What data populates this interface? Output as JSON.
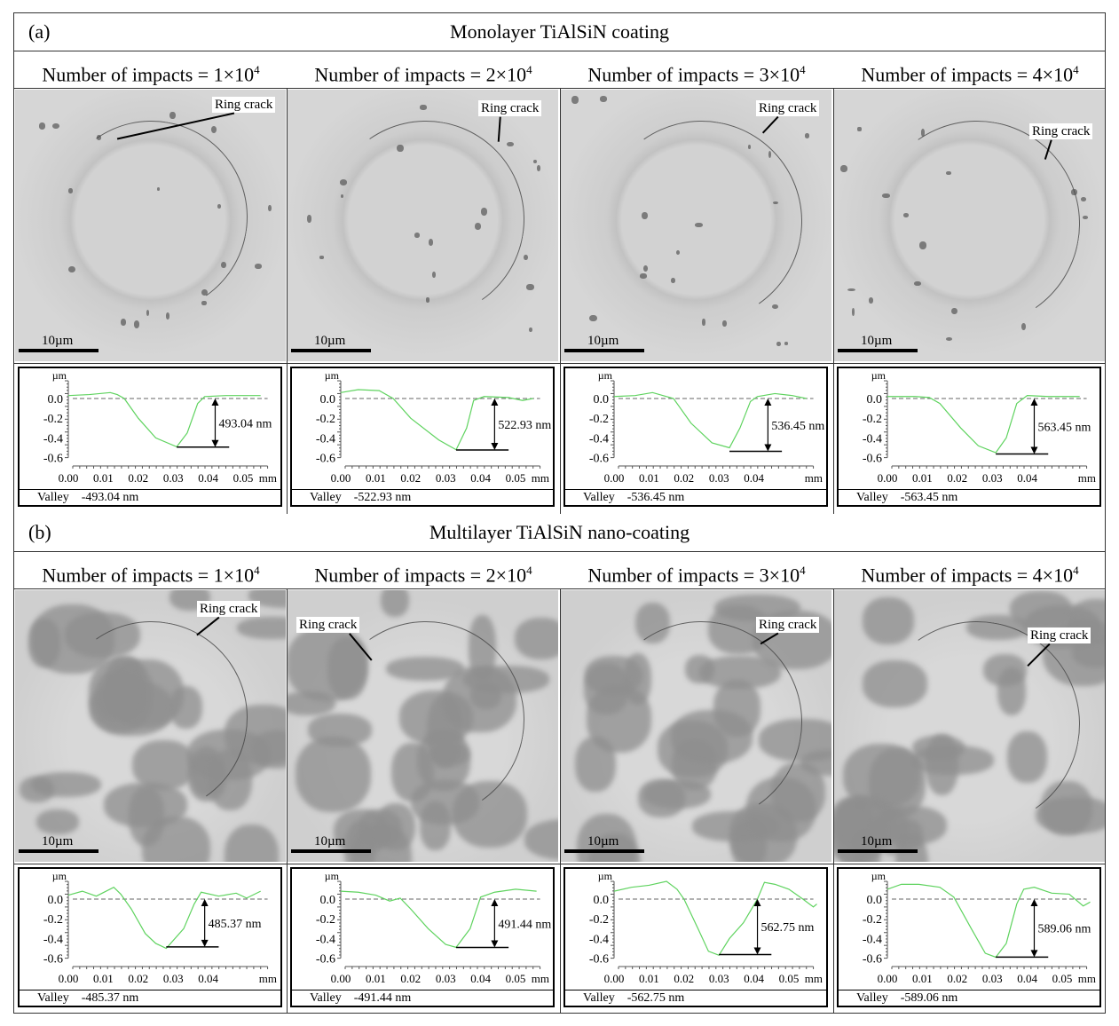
{
  "sections": [
    {
      "label": "(a)",
      "title": "Monolayer TiAlSiN coating",
      "type": "mono",
      "panels": [
        {
          "header": "Number of impacts = 1×10",
          "exp": "4",
          "crack_label": "Ring crack",
          "scale": "10µm",
          "valley_label": "Valley",
          "valley_value": "-493.04 nm",
          "depth_label": "493.04 nm"
        },
        {
          "header": "Number of impacts = 2×10",
          "exp": "4",
          "crack_label": "Ring crack",
          "scale": "10µm",
          "valley_label": "Valley",
          "valley_value": "-522.93 nm",
          "depth_label": "522.93 nm"
        },
        {
          "header": "Number of impacts = 3×10",
          "exp": "4",
          "crack_label": "Ring crack",
          "scale": "10µm",
          "valley_label": "Valley",
          "valley_value": "-536.45 nm",
          "depth_label": "536.45 nm"
        },
        {
          "header": "Number of impacts = 4×10",
          "exp": "4",
          "crack_label": "Ring crack",
          "scale": "10µm",
          "valley_label": "Valley",
          "valley_value": "-563.45 nm",
          "depth_label": "563.45 nm"
        }
      ]
    },
    {
      "label": "(b)",
      "title": "Multilayer TiAlSiN nano-coating",
      "type": "multi",
      "panels": [
        {
          "header": "Number of impacts = 1×10",
          "exp": "4",
          "crack_label": "Ring crack",
          "scale": "10µm",
          "valley_label": "Valley",
          "valley_value": "-485.37 nm",
          "depth_label": "485.37 nm"
        },
        {
          "header": "Number of impacts = 2×10",
          "exp": "4",
          "crack_label": "Ring crack",
          "scale": "10µm",
          "valley_label": "Valley",
          "valley_value": "-491.44 nm",
          "depth_label": "491.44 nm"
        },
        {
          "header": "Number of impacts = 3×10",
          "exp": "4",
          "crack_label": "Ring crack",
          "scale": "10µm",
          "valley_label": "Valley",
          "valley_value": "-562.75 nm",
          "depth_label": "562.75 nm"
        },
        {
          "header": "Number of impacts = 4×10",
          "exp": "4",
          "crack_label": "Ring crack",
          "scale": "10µm",
          "valley_label": "Valley",
          "valley_value": "-589.06 nm",
          "depth_label": "589.06 nm"
        }
      ]
    }
  ],
  "chart_data": [
    {
      "type": "line",
      "ylabel": "µm",
      "xlabel": "mm",
      "yticks": [
        "0.0",
        "-0.2",
        "-0.4",
        "-0.6"
      ],
      "xticks": [
        "0.00",
        "0.01",
        "0.02",
        "0.03",
        "0.04",
        "0.05"
      ],
      "ylim": [
        -0.6,
        0.18
      ],
      "xlim": [
        0,
        0.057
      ],
      "line_color": "#5fd35f",
      "depth_nm": 493.04,
      "valley_x": 0.031,
      "points": [
        [
          0,
          0.03
        ],
        [
          0.006,
          0.04
        ],
        [
          0.012,
          0.06
        ],
        [
          0.014,
          0.04
        ],
        [
          0.016,
          0
        ],
        [
          0.02,
          -0.2
        ],
        [
          0.025,
          -0.4
        ],
        [
          0.031,
          -0.49
        ],
        [
          0.034,
          -0.35
        ],
        [
          0.037,
          -0.05
        ],
        [
          0.039,
          0.02
        ],
        [
          0.045,
          0.03
        ],
        [
          0.055,
          0.03
        ]
      ]
    },
    {
      "type": "line",
      "ylabel": "µm",
      "xlabel": "mm",
      "yticks": [
        "0.0",
        "-0.2",
        "-0.4",
        "-0.6"
      ],
      "xticks": [
        "0.00",
        "0.01",
        "0.02",
        "0.03",
        "0.04",
        "0.05"
      ],
      "ylim": [
        -0.6,
        0.18
      ],
      "xlim": [
        0,
        0.057
      ],
      "line_color": "#5fd35f",
      "depth_nm": 522.93,
      "valley_x": 0.033,
      "points": [
        [
          0,
          0.06
        ],
        [
          0.005,
          0.09
        ],
        [
          0.011,
          0.08
        ],
        [
          0.015,
          0
        ],
        [
          0.02,
          -0.2
        ],
        [
          0.028,
          -0.42
        ],
        [
          0.033,
          -0.52
        ],
        [
          0.036,
          -0.3
        ],
        [
          0.038,
          -0.02
        ],
        [
          0.041,
          0.02
        ],
        [
          0.048,
          0.01
        ],
        [
          0.052,
          -0.02
        ],
        [
          0.055,
          0
        ]
      ]
    },
    {
      "type": "line",
      "ylabel": "µm",
      "xlabel": "mm",
      "yticks": [
        "0.0",
        "-0.2",
        "-0.4",
        "-0.6"
      ],
      "xticks": [
        "0.00",
        "0.01",
        "0.02",
        "0.03",
        "0.04"
      ],
      "ylim": [
        -0.6,
        0.18
      ],
      "xlim": [
        0,
        0.057
      ],
      "line_color": "#5fd35f",
      "depth_nm": 536.45,
      "valley_x": 0.033,
      "points": [
        [
          0,
          0.02
        ],
        [
          0.006,
          0.03
        ],
        [
          0.011,
          0.06
        ],
        [
          0.014,
          0.03
        ],
        [
          0.017,
          0
        ],
        [
          0.022,
          -0.25
        ],
        [
          0.028,
          -0.45
        ],
        [
          0.033,
          -0.5
        ],
        [
          0.036,
          -0.3
        ],
        [
          0.039,
          -0.03
        ],
        [
          0.041,
          0.02
        ],
        [
          0.046,
          0.05
        ],
        [
          0.051,
          0.03
        ],
        [
          0.055,
          0
        ]
      ]
    },
    {
      "type": "line",
      "ylabel": "µm",
      "xlabel": "mm",
      "yticks": [
        "0.0",
        "-0.2",
        "-0.4",
        "-0.6"
      ],
      "xticks": [
        "0.00",
        "0.01",
        "0.02",
        "0.03",
        "0.04"
      ],
      "ylim": [
        -0.6,
        0.18
      ],
      "xlim": [
        0,
        0.057
      ],
      "line_color": "#5fd35f",
      "depth_nm": 563.45,
      "valley_x": 0.031,
      "points": [
        [
          0,
          0.02
        ],
        [
          0.008,
          0.02
        ],
        [
          0.012,
          0.01
        ],
        [
          0.015,
          -0.05
        ],
        [
          0.021,
          -0.3
        ],
        [
          0.026,
          -0.48
        ],
        [
          0.031,
          -0.55
        ],
        [
          0.034,
          -0.4
        ],
        [
          0.037,
          -0.05
        ],
        [
          0.04,
          0.03
        ],
        [
          0.046,
          0.02
        ],
        [
          0.055,
          0.02
        ]
      ]
    },
    {
      "type": "line",
      "ylabel": "µm",
      "xlabel": "mm",
      "yticks": [
        "0.0",
        "-0.2",
        "-0.4",
        "-0.6"
      ],
      "xticks": [
        "0.00",
        "0.01",
        "0.02",
        "0.03",
        "0.04"
      ],
      "ylim": [
        -0.6,
        0.18
      ],
      "xlim": [
        0,
        0.057
      ],
      "line_color": "#5fd35f",
      "depth_nm": 485.37,
      "valley_x": 0.028,
      "points": [
        [
          0,
          0.04
        ],
        [
          0.004,
          0.08
        ],
        [
          0.008,
          0.03
        ],
        [
          0.013,
          0.12
        ],
        [
          0.015,
          0.05
        ],
        [
          0.018,
          -0.1
        ],
        [
          0.022,
          -0.35
        ],
        [
          0.025,
          -0.45
        ],
        [
          0.028,
          -0.5
        ],
        [
          0.033,
          -0.3
        ],
        [
          0.036,
          -0.05
        ],
        [
          0.038,
          0.07
        ],
        [
          0.043,
          0.03
        ],
        [
          0.048,
          0.06
        ],
        [
          0.051,
          0.01
        ],
        [
          0.055,
          0.08
        ]
      ]
    },
    {
      "type": "line",
      "ylabel": "µm",
      "xlabel": "mm",
      "yticks": [
        "0.0",
        "-0.2",
        "-0.4",
        "-0.6"
      ],
      "xticks": [
        "0.00",
        "0.01",
        "0.02",
        "0.03",
        "0.04",
        "0.05"
      ],
      "ylim": [
        -0.6,
        0.18
      ],
      "xlim": [
        0,
        0.057
      ],
      "line_color": "#5fd35f",
      "depth_nm": 491.44,
      "valley_x": 0.033,
      "points": [
        [
          0,
          0.08
        ],
        [
          0.005,
          0.07
        ],
        [
          0.01,
          0.04
        ],
        [
          0.014,
          -0.02
        ],
        [
          0.017,
          0.01
        ],
        [
          0.02,
          -0.1
        ],
        [
          0.025,
          -0.3
        ],
        [
          0.03,
          -0.46
        ],
        [
          0.033,
          -0.49
        ],
        [
          0.037,
          -0.3
        ],
        [
          0.04,
          0.02
        ],
        [
          0.044,
          0.07
        ],
        [
          0.05,
          0.1
        ],
        [
          0.056,
          0.08
        ]
      ]
    },
    {
      "type": "line",
      "ylabel": "µm",
      "xlabel": "mm",
      "yticks": [
        "0.0",
        "-0.2",
        "-0.4",
        "-0.6"
      ],
      "xticks": [
        "0.00",
        "0.01",
        "0.02",
        "0.03",
        "0.04",
        "0.05"
      ],
      "ylim": [
        -0.6,
        0.18
      ],
      "xlim": [
        0,
        0.057
      ],
      "line_color": "#5fd35f",
      "depth_nm": 562.75,
      "valley_x": 0.03,
      "points": [
        [
          0,
          0.08
        ],
        [
          0.005,
          0.12
        ],
        [
          0.01,
          0.14
        ],
        [
          0.015,
          0.18
        ],
        [
          0.018,
          0.1
        ],
        [
          0.02,
          0
        ],
        [
          0.024,
          -0.3
        ],
        [
          0.027,
          -0.53
        ],
        [
          0.03,
          -0.57
        ],
        [
          0.033,
          -0.4
        ],
        [
          0.037,
          -0.24
        ],
        [
          0.041,
          0
        ],
        [
          0.043,
          0.17
        ],
        [
          0.046,
          0.15
        ],
        [
          0.05,
          0.1
        ],
        [
          0.054,
          0
        ],
        [
          0.057,
          -0.08
        ],
        [
          0.058,
          -0.05
        ]
      ]
    },
    {
      "type": "line",
      "ylabel": "µm",
      "xlabel": "mm",
      "yticks": [
        "0.0",
        "-0.2",
        "-0.4",
        "-0.6"
      ],
      "xticks": [
        "0.00",
        "0.01",
        "0.02",
        "0.03",
        "0.04",
        "0.05"
      ],
      "ylim": [
        -0.6,
        0.18
      ],
      "xlim": [
        0,
        0.057
      ],
      "line_color": "#5fd35f",
      "depth_nm": 589.06,
      "valley_x": 0.031,
      "points": [
        [
          0,
          0.1
        ],
        [
          0.004,
          0.15
        ],
        [
          0.009,
          0.15
        ],
        [
          0.015,
          0.12
        ],
        [
          0.019,
          0.02
        ],
        [
          0.024,
          -0.3
        ],
        [
          0.028,
          -0.55
        ],
        [
          0.031,
          -0.59
        ],
        [
          0.034,
          -0.45
        ],
        [
          0.037,
          -0.05
        ],
        [
          0.039,
          0.1
        ],
        [
          0.042,
          0.12
        ],
        [
          0.047,
          0.06
        ],
        [
          0.052,
          0.05
        ],
        [
          0.056,
          -0.07
        ],
        [
          0.058,
          -0.03
        ]
      ]
    }
  ]
}
